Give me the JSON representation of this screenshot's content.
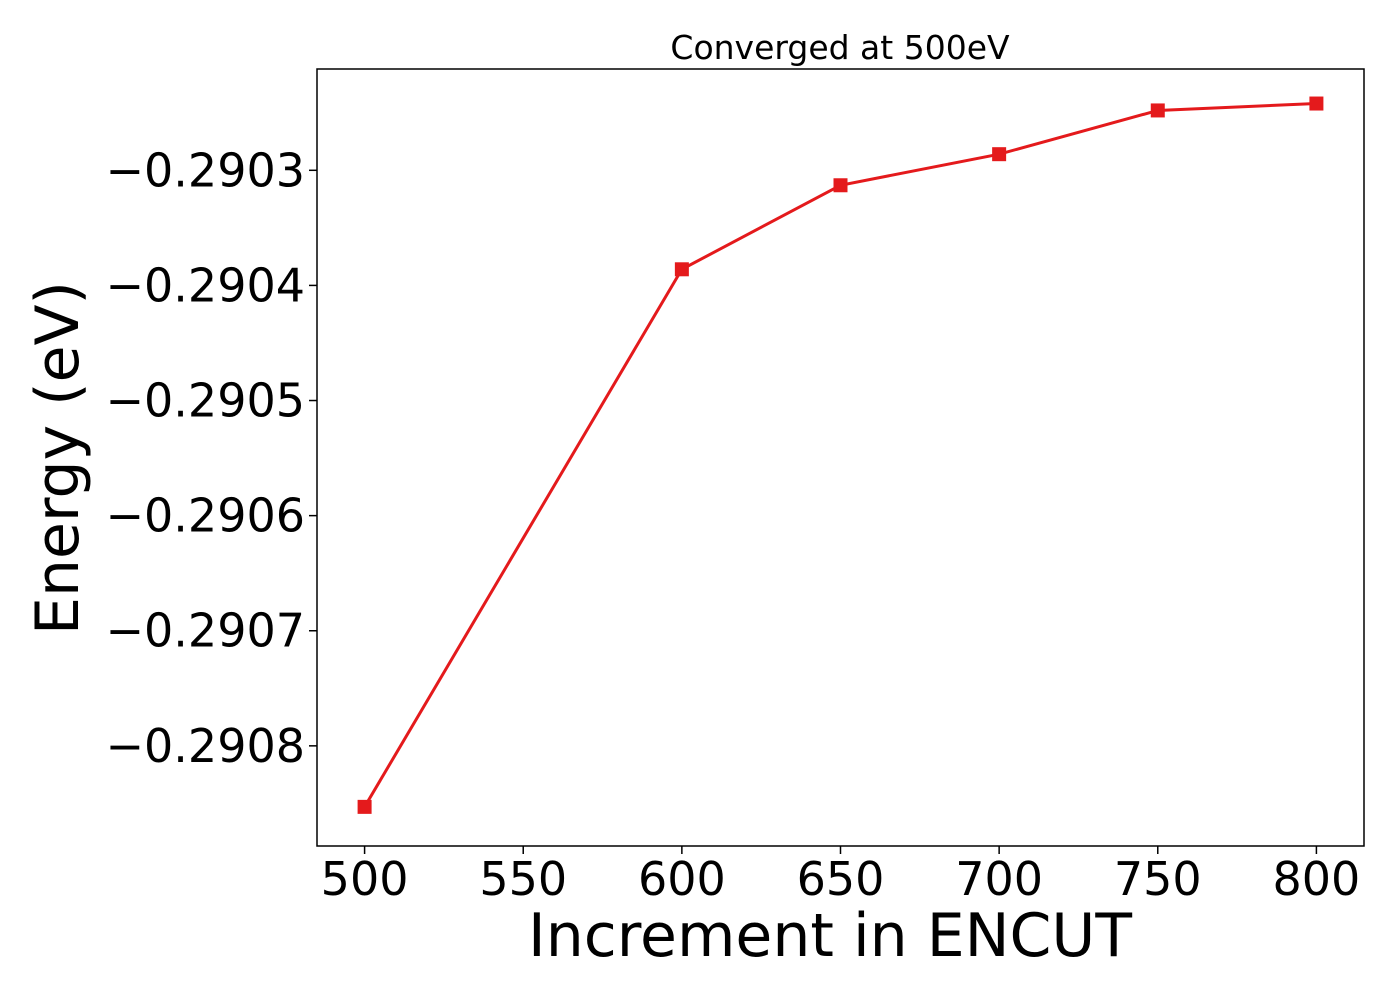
{
  "chart_data": {
    "type": "line",
    "title": "Converged at 500eV",
    "xlabel": "Increment in ENCUT",
    "ylabel": "Energy (eV)",
    "x": [
      500,
      600,
      650,
      700,
      750,
      800
    ],
    "series": [
      {
        "values": [
          -0.290853,
          -0.290386,
          -0.290313,
          -0.290286,
          -0.290248,
          -0.290242
        ],
        "color": "#e41a1c",
        "marker": "square"
      }
    ],
    "xlim": [
      485,
      815
    ],
    "ylim": [
      -0.290887,
      -0.290212
    ],
    "xticks": [
      500,
      550,
      600,
      650,
      700,
      750,
      800
    ],
    "xtick_labels": [
      "500",
      "550",
      "600",
      "650",
      "700",
      "750",
      "800"
    ],
    "yticks": [
      -0.2908,
      -0.2907,
      -0.2906,
      -0.2905,
      -0.2904,
      -0.2903
    ],
    "ytick_labels": [
      "−0.2908",
      "−0.2907",
      "−0.2906",
      "−0.2905",
      "−0.2904",
      "−0.2903"
    ],
    "grid": false,
    "legend": "none"
  }
}
